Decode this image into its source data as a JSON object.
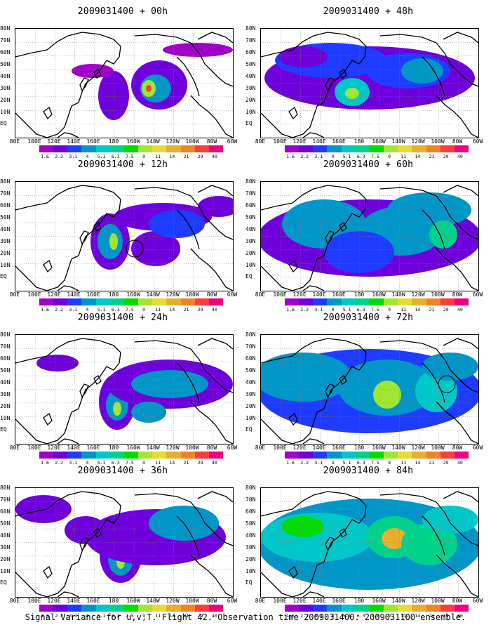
{
  "panels": [
    {
      "title": "2009031400 + 00h"
    },
    {
      "title": "2009031400 + 48h"
    },
    {
      "title": "2009031400 + 12h"
    },
    {
      "title": "2009031400 + 60h"
    },
    {
      "title": "2009031400 + 24h"
    },
    {
      "title": "2009031400 + 72h"
    },
    {
      "title": "2009031400 + 36h"
    },
    {
      "title": "2009031400 + 84h"
    }
  ],
  "lat_labels": [
    "80N",
    "70N",
    "60N",
    "50N",
    "40N",
    "30N",
    "20N",
    "10N",
    "EQ"
  ],
  "lon_labels": [
    "80E",
    "100E",
    "120E",
    "140E",
    "160E",
    "180",
    "160W",
    "140W",
    "120W",
    "100W",
    "80W",
    "60W"
  ],
  "colorbar": {
    "labels": [
      "1.6",
      "2.2",
      "3.1",
      "4",
      "5.1",
      "6.3",
      "7.5",
      "9",
      "11",
      "14",
      "21",
      "29",
      "40"
    ],
    "colors": [
      "#a000c8",
      "#6e00dc",
      "#1e3cff",
      "#0096c8",
      "#00c8c8",
      "#00d28c",
      "#00dc00",
      "#a0e632",
      "#e6dc32",
      "#e6af2d",
      "#f08228",
      "#fa3c3c",
      "#f00082"
    ]
  },
  "caption": "Signal Variance for u,v,T. Flight 42. Observation time 2009031400. 2009031100 ensemble."
}
